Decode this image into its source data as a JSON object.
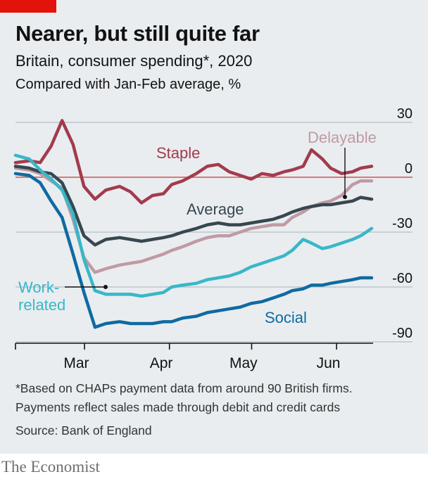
{
  "header": {
    "title": "Nearer, but still quite far",
    "subtitle": "Britain, consumer spending*, 2020",
    "unit_note": "Compared with Jan-Feb average, %"
  },
  "footer": {
    "footnote_line1": "*Based on CHAPs payment data from around 90 British firms.",
    "footnote_line2": "Payments reflect sales made through debit and credit cards",
    "source": "Source: Bank of England",
    "brand": "The Economist"
  },
  "colors": {
    "accent": "#e3120b",
    "staple": "#a33b4c",
    "delayable": "#c09aa4",
    "average": "#37474f",
    "work_related": "#39b7c8",
    "social": "#0f6aa1",
    "zero_line": "#d9534f",
    "grid": "#b5bfc5"
  },
  "chart_data": {
    "type": "line",
    "title": "Nearer, but still quite far",
    "subtitle": "Britain, consumer spending*, 2020",
    "ylabel": "Compared with Jan-Feb average, %",
    "xlabel": "",
    "x_ticks": [
      "Mar",
      "Apr",
      "May",
      "Jun"
    ],
    "xlim": [
      "2020-02-21",
      "2020-06-30"
    ],
    "y_ticks": [
      30,
      0,
      -30,
      -60,
      -90
    ],
    "ylim": [
      -90,
      30
    ],
    "grid": true,
    "legend": "inline labels",
    "series": [
      {
        "name": "Staple",
        "key": "staple",
        "points": [
          [
            "2020-02-21",
            8
          ],
          [
            "2020-02-26",
            9
          ],
          [
            "2020-03-01",
            8
          ],
          [
            "2020-03-05",
            17
          ],
          [
            "2020-03-09",
            31
          ],
          [
            "2020-03-13",
            18
          ],
          [
            "2020-03-17",
            -5
          ],
          [
            "2020-03-21",
            -12
          ],
          [
            "2020-03-25",
            -7
          ],
          [
            "2020-03-30",
            -5
          ],
          [
            "2020-04-03",
            -8
          ],
          [
            "2020-04-07",
            -14
          ],
          [
            "2020-04-11",
            -10
          ],
          [
            "2020-04-15",
            -9
          ],
          [
            "2020-04-18",
            -4
          ],
          [
            "2020-04-22",
            -2
          ],
          [
            "2020-04-27",
            2
          ],
          [
            "2020-05-01",
            6
          ],
          [
            "2020-05-05",
            7
          ],
          [
            "2020-05-09",
            3
          ],
          [
            "2020-05-13",
            1
          ],
          [
            "2020-05-17",
            -1
          ],
          [
            "2020-05-21",
            2
          ],
          [
            "2020-05-25",
            1
          ],
          [
            "2020-05-29",
            3
          ],
          [
            "2020-06-01",
            4
          ],
          [
            "2020-06-05",
            6
          ],
          [
            "2020-06-08",
            15
          ],
          [
            "2020-06-12",
            10
          ],
          [
            "2020-06-15",
            5
          ],
          [
            "2020-06-19",
            2
          ],
          [
            "2020-06-23",
            3
          ],
          [
            "2020-06-26",
            5
          ],
          [
            "2020-06-30",
            6
          ]
        ]
      },
      {
        "name": "Delayable",
        "key": "delayable",
        "points": [
          [
            "2020-02-21",
            5
          ],
          [
            "2020-02-26",
            4
          ],
          [
            "2020-03-01",
            2
          ],
          [
            "2020-03-05",
            -2
          ],
          [
            "2020-03-09",
            -6
          ],
          [
            "2020-03-13",
            -23
          ],
          [
            "2020-03-17",
            -44
          ],
          [
            "2020-03-21",
            -52
          ],
          [
            "2020-03-25",
            -50
          ],
          [
            "2020-03-30",
            -48
          ],
          [
            "2020-04-03",
            -47
          ],
          [
            "2020-04-07",
            -46
          ],
          [
            "2020-04-11",
            -44
          ],
          [
            "2020-04-15",
            -42
          ],
          [
            "2020-04-18",
            -40
          ],
          [
            "2020-04-22",
            -38
          ],
          [
            "2020-04-27",
            -35
          ],
          [
            "2020-05-01",
            -33
          ],
          [
            "2020-05-05",
            -32
          ],
          [
            "2020-05-09",
            -32
          ],
          [
            "2020-05-13",
            -30
          ],
          [
            "2020-05-17",
            -28
          ],
          [
            "2020-05-21",
            -27
          ],
          [
            "2020-05-25",
            -26
          ],
          [
            "2020-05-29",
            -26
          ],
          [
            "2020-06-01",
            -22
          ],
          [
            "2020-06-05",
            -19
          ],
          [
            "2020-06-08",
            -16
          ],
          [
            "2020-06-12",
            -14
          ],
          [
            "2020-06-15",
            -13
          ],
          [
            "2020-06-19",
            -10
          ],
          [
            "2020-06-23",
            -4
          ],
          [
            "2020-06-26",
            -2
          ],
          [
            "2020-06-30",
            -2
          ]
        ]
      },
      {
        "name": "Average",
        "key": "average",
        "points": [
          [
            "2020-02-21",
            6
          ],
          [
            "2020-02-26",
            5
          ],
          [
            "2020-03-01",
            3
          ],
          [
            "2020-03-05",
            2
          ],
          [
            "2020-03-09",
            -3
          ],
          [
            "2020-03-13",
            -16
          ],
          [
            "2020-03-17",
            -32
          ],
          [
            "2020-03-21",
            -37
          ],
          [
            "2020-03-25",
            -34
          ],
          [
            "2020-03-30",
            -33
          ],
          [
            "2020-04-03",
            -34
          ],
          [
            "2020-04-07",
            -35
          ],
          [
            "2020-04-11",
            -34
          ],
          [
            "2020-04-15",
            -33
          ],
          [
            "2020-04-18",
            -32
          ],
          [
            "2020-04-22",
            -30
          ],
          [
            "2020-04-27",
            -28
          ],
          [
            "2020-05-01",
            -26
          ],
          [
            "2020-05-05",
            -25
          ],
          [
            "2020-05-09",
            -26
          ],
          [
            "2020-05-13",
            -26
          ],
          [
            "2020-05-17",
            -25
          ],
          [
            "2020-05-21",
            -24
          ],
          [
            "2020-05-25",
            -23
          ],
          [
            "2020-05-29",
            -21
          ],
          [
            "2020-06-01",
            -19
          ],
          [
            "2020-06-05",
            -17
          ],
          [
            "2020-06-08",
            -16
          ],
          [
            "2020-06-12",
            -15
          ],
          [
            "2020-06-15",
            -15
          ],
          [
            "2020-06-19",
            -14
          ],
          [
            "2020-06-23",
            -13
          ],
          [
            "2020-06-26",
            -11
          ],
          [
            "2020-06-30",
            -12
          ]
        ]
      },
      {
        "name": "Work-related",
        "key": "work_related",
        "points": [
          [
            "2020-02-21",
            12
          ],
          [
            "2020-02-26",
            10
          ],
          [
            "2020-03-01",
            4
          ],
          [
            "2020-03-05",
            -1
          ],
          [
            "2020-03-09",
            -7
          ],
          [
            "2020-03-13",
            -20
          ],
          [
            "2020-03-17",
            -45
          ],
          [
            "2020-03-21",
            -62
          ],
          [
            "2020-03-25",
            -64
          ],
          [
            "2020-03-30",
            -64
          ],
          [
            "2020-04-03",
            -64
          ],
          [
            "2020-04-07",
            -65
          ],
          [
            "2020-04-11",
            -64
          ],
          [
            "2020-04-15",
            -63
          ],
          [
            "2020-04-18",
            -60
          ],
          [
            "2020-04-22",
            -59
          ],
          [
            "2020-04-27",
            -58
          ],
          [
            "2020-05-01",
            -56
          ],
          [
            "2020-05-05",
            -55
          ],
          [
            "2020-05-09",
            -54
          ],
          [
            "2020-05-13",
            -52
          ],
          [
            "2020-05-17",
            -49
          ],
          [
            "2020-05-21",
            -47
          ],
          [
            "2020-05-25",
            -45
          ],
          [
            "2020-05-29",
            -43
          ],
          [
            "2020-06-01",
            -40
          ],
          [
            "2020-06-05",
            -34
          ],
          [
            "2020-06-08",
            -36
          ],
          [
            "2020-06-12",
            -39
          ],
          [
            "2020-06-15",
            -38
          ],
          [
            "2020-06-19",
            -36
          ],
          [
            "2020-06-23",
            -34
          ],
          [
            "2020-06-26",
            -32
          ],
          [
            "2020-06-30",
            -28
          ]
        ]
      },
      {
        "name": "Social",
        "key": "social",
        "points": [
          [
            "2020-02-21",
            2
          ],
          [
            "2020-02-26",
            1
          ],
          [
            "2020-03-01",
            -3
          ],
          [
            "2020-03-05",
            -13
          ],
          [
            "2020-03-09",
            -22
          ],
          [
            "2020-03-13",
            -42
          ],
          [
            "2020-03-17",
            -63
          ],
          [
            "2020-03-21",
            -82
          ],
          [
            "2020-03-25",
            -80
          ],
          [
            "2020-03-30",
            -79
          ],
          [
            "2020-04-03",
            -80
          ],
          [
            "2020-04-07",
            -80
          ],
          [
            "2020-04-11",
            -80
          ],
          [
            "2020-04-15",
            -79
          ],
          [
            "2020-04-18",
            -79
          ],
          [
            "2020-04-22",
            -77
          ],
          [
            "2020-04-27",
            -76
          ],
          [
            "2020-05-01",
            -74
          ],
          [
            "2020-05-05",
            -73
          ],
          [
            "2020-05-09",
            -72
          ],
          [
            "2020-05-13",
            -71
          ],
          [
            "2020-05-17",
            -69
          ],
          [
            "2020-05-21",
            -68
          ],
          [
            "2020-05-25",
            -66
          ],
          [
            "2020-05-29",
            -64
          ],
          [
            "2020-06-01",
            -62
          ],
          [
            "2020-06-05",
            -61
          ],
          [
            "2020-06-08",
            -59
          ],
          [
            "2020-06-12",
            -59
          ],
          [
            "2020-06-15",
            -58
          ],
          [
            "2020-06-19",
            -57
          ],
          [
            "2020-06-23",
            -56
          ],
          [
            "2020-06-26",
            -55
          ],
          [
            "2020-06-30",
            -55
          ]
        ]
      }
    ],
    "annotations": [
      {
        "text": "Staple",
        "series": "staple"
      },
      {
        "text": "Delayable",
        "series": "delayable"
      },
      {
        "text": "Average",
        "series": "average"
      },
      {
        "text": "Work-",
        "series": "work_related"
      },
      {
        "text": "related",
        "series": "work_related"
      },
      {
        "text": "Social",
        "series": "social"
      }
    ]
  }
}
